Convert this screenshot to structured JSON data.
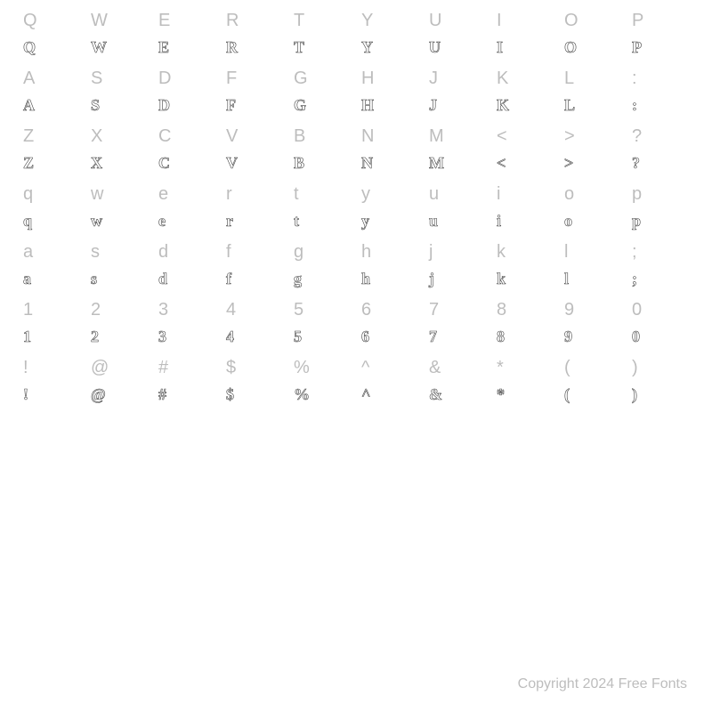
{
  "grid": {
    "label_color": "#bdbdbd",
    "label_fontsize": 20,
    "glyph_stroke_color": "#444444",
    "glyph_fill_color": "#ffffff",
    "glyph_fontsize": 18,
    "background_color": "#ffffff",
    "columns": 10,
    "pairs": [
      {
        "labels": [
          "Q",
          "W",
          "E",
          "R",
          "T",
          "Y",
          "U",
          "I",
          "O",
          "P"
        ],
        "glyphs": [
          "Q",
          "W",
          "E",
          "R",
          "T",
          "Y",
          "U",
          "I",
          "O",
          "P"
        ]
      },
      {
        "labels": [
          "A",
          "S",
          "D",
          "F",
          "G",
          "H",
          "J",
          "K",
          "L",
          ":"
        ],
        "glyphs": [
          "A",
          "S",
          "D",
          "F",
          "G",
          "H",
          "J",
          "K",
          "L",
          ":"
        ]
      },
      {
        "labels": [
          "Z",
          "X",
          "C",
          "V",
          "B",
          "N",
          "M",
          "<",
          ">",
          "?"
        ],
        "glyphs": [
          "Z",
          "X",
          "C",
          "V",
          "B",
          "N",
          "M",
          "<",
          ">",
          "?"
        ]
      },
      {
        "labels": [
          "q",
          "w",
          "e",
          "r",
          "t",
          "y",
          "u",
          "i",
          "o",
          "p"
        ],
        "glyphs": [
          "q",
          "w",
          "e",
          "r",
          "t",
          "y",
          "u",
          "i",
          "o",
          "p"
        ]
      },
      {
        "labels": [
          "a",
          "s",
          "d",
          "f",
          "g",
          "h",
          "j",
          "k",
          "l",
          ";"
        ],
        "glyphs": [
          "a",
          "s",
          "d",
          "f",
          "g",
          "h",
          "j",
          "k",
          "l",
          ";"
        ]
      },
      {
        "labels": [
          "1",
          "2",
          "3",
          "4",
          "5",
          "6",
          "7",
          "8",
          "9",
          "0"
        ],
        "glyphs": [
          "1",
          "2",
          "3",
          "4",
          "5",
          "6",
          "7",
          "8",
          "9",
          "0"
        ]
      },
      {
        "labels": [
          "!",
          "@",
          "#",
          "$",
          "%",
          "^",
          "&",
          "*",
          "(",
          ")"
        ],
        "glyphs": [
          "!",
          "@",
          "#",
          "$",
          "%",
          "^",
          "&",
          "*",
          "(",
          ")"
        ]
      }
    ]
  },
  "footer": {
    "text": "Copyright 2024 Free Fonts",
    "color": "#bdbdbd",
    "fontsize": 16
  }
}
